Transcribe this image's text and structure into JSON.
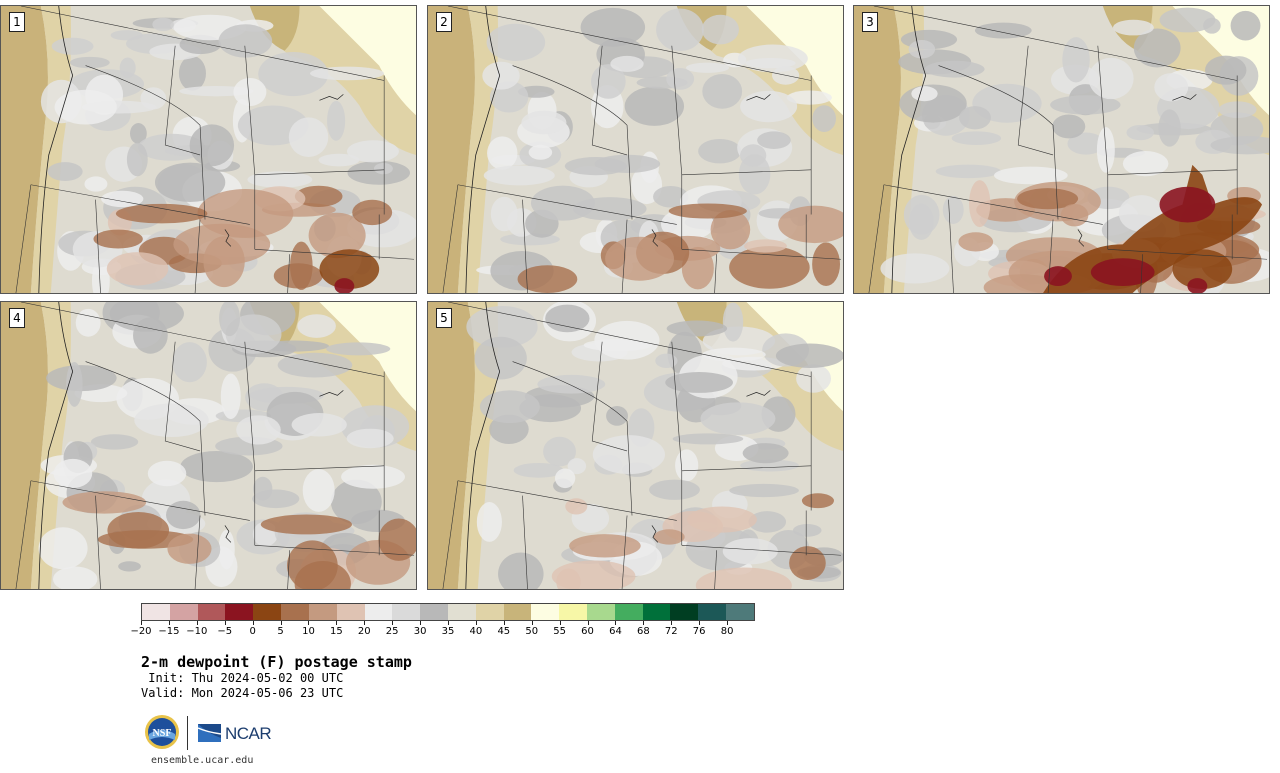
{
  "panels": [
    {
      "label": "1",
      "hot_spot": "southeast",
      "intensity": 1
    },
    {
      "label": "2",
      "hot_spot": "southwest",
      "intensity": 0
    },
    {
      "label": "3",
      "hot_spot": "southeast-strong",
      "intensity": 2
    },
    {
      "label": "4",
      "hot_spot": "south",
      "intensity": 0
    },
    {
      "label": "5",
      "hot_spot": "south",
      "intensity": 0
    }
  ],
  "colorbar": {
    "colors": [
      "#f0e4e4",
      "#d4a3a3",
      "#b0585a",
      "#8b1420",
      "#8b4513",
      "#a8714e",
      "#c49a80",
      "#dfc3b3",
      "#ededed",
      "#dadada",
      "#b8b8b8",
      "#e1dfd2",
      "#e0d3a7",
      "#c8b47a",
      "#fdfde2",
      "#f7f7a7",
      "#a8d98e",
      "#44ad5f",
      "#00703a",
      "#003e22",
      "#1c5857",
      "#4e7a7a"
    ],
    "ticks": [
      "−20",
      "−15",
      "−10",
      "−5",
      "0",
      "5",
      "10",
      "15",
      "20",
      "25",
      "30",
      "35",
      "40",
      "45",
      "50",
      "55",
      "60",
      "64",
      "68",
      "72",
      "76",
      "80"
    ]
  },
  "title": "2-m dewpoint (F) postage stamp",
  "init": " Init: Thu 2024-05-02 00 UTC",
  "valid": "Valid: Mon 2024-05-06 23 UTC",
  "logos": {
    "nsf": "NSF",
    "ncar": "NCAR"
  },
  "site": "ensemble.ucar.edu"
}
